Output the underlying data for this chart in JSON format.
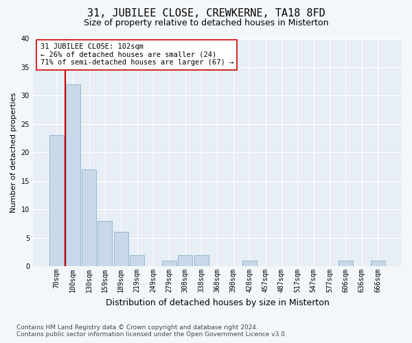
{
  "title": "31, JUBILEE CLOSE, CREWKERNE, TA18 8FD",
  "subtitle": "Size of property relative to detached houses in Misterton",
  "xlabel": "Distribution of detached houses by size in Misterton",
  "ylabel": "Number of detached properties",
  "bar_labels": [
    "70sqm",
    "100sqm",
    "130sqm",
    "159sqm",
    "189sqm",
    "219sqm",
    "249sqm",
    "279sqm",
    "308sqm",
    "338sqm",
    "368sqm",
    "398sqm",
    "428sqm",
    "457sqm",
    "487sqm",
    "517sqm",
    "547sqm",
    "577sqm",
    "606sqm",
    "636sqm",
    "666sqm"
  ],
  "bar_values": [
    23,
    32,
    17,
    8,
    6,
    2,
    0,
    1,
    2,
    2,
    0,
    0,
    1,
    0,
    0,
    0,
    0,
    0,
    1,
    0,
    1
  ],
  "bar_color": "#c9d9ea",
  "bar_edge_color": "#8ab0cc",
  "vline_color": "#cc0000",
  "annotation_text": "31 JUBILEE CLOSE: 102sqm\n← 26% of detached houses are smaller (24)\n71% of semi-detached houses are larger (67) →",
  "annotation_box_facecolor": "#ffffff",
  "annotation_box_edgecolor": "#cc0000",
  "ylim": [
    0,
    40
  ],
  "yticks": [
    0,
    5,
    10,
    15,
    20,
    25,
    30,
    35,
    40
  ],
  "fig_bg_color": "#f4f7fa",
  "plot_bg_color": "#e8eef5",
  "grid_color": "#ffffff",
  "title_fontsize": 11,
  "subtitle_fontsize": 9,
  "xlabel_fontsize": 9,
  "ylabel_fontsize": 8,
  "tick_fontsize": 7,
  "annotation_fontsize": 7.5,
  "footer_fontsize": 6.5,
  "footer_line1": "Contains HM Land Registry data © Crown copyright and database right 2024.",
  "footer_line2": "Contains public sector information licensed under the Open Government Licence v3.0."
}
